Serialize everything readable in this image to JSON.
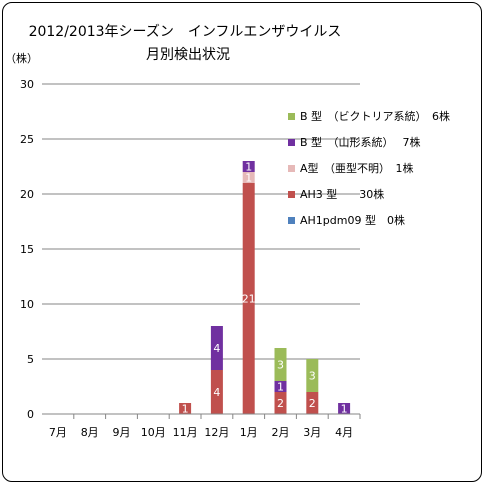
{
  "chart_data": {
    "type": "bar",
    "stacked": true,
    "title": "2012/2013年シーズン インフルエンザウイルス",
    "title_line1": "2012/2013年シーズン　インフルエンザウイルス",
    "title_line2": "月別検出状況",
    "ylabel": "（株）",
    "xlabel": "",
    "ylim": [
      0,
      30
    ],
    "yticks": [
      "0",
      "5",
      "10",
      "15",
      "20",
      "25",
      "30"
    ],
    "grid": true,
    "legend_position": "right",
    "categories": [
      "7月",
      "8月",
      "9月",
      "10月",
      "11月",
      "12月",
      "1月",
      "2月",
      "3月",
      "4月"
    ],
    "series": [
      {
        "name": "AH1pdm09 型",
        "legend": "AH1pdm09 型　0株",
        "color": "#4f81bd",
        "values": [
          0,
          0,
          0,
          0,
          0,
          0,
          0,
          0,
          0,
          0
        ]
      },
      {
        "name": "AH3 型",
        "legend": "AH3 型　　30株",
        "color": "#c0504d",
        "values": [
          0,
          0,
          0,
          0,
          1,
          4,
          21,
          2,
          2,
          0
        ]
      },
      {
        "name": "A型（亜型不明）",
        "legend": "A型　（亜型不明）　1株",
        "color": "#e6b9b8",
        "values": [
          0,
          0,
          0,
          0,
          0,
          0,
          1,
          0,
          0,
          0
        ]
      },
      {
        "name": "B 型（山形系統）",
        "legend": "B 型　（山形系統）　 7株",
        "color": "#7030a0",
        "values": [
          0,
          0,
          0,
          0,
          0,
          4,
          1,
          1,
          0,
          1
        ]
      },
      {
        "name": "B 型（ビクトリア系統）",
        "legend": "B 型　（ビクトリア系統）　6株",
        "color": "#9bbb59",
        "values": [
          0,
          0,
          0,
          0,
          0,
          0,
          0,
          3,
          3,
          0
        ]
      }
    ],
    "legend_order": [
      "B 型（ビクトリア系統）",
      "B 型（山形系統）",
      "A型（亜型不明）",
      "AH3 型",
      "AH1pdm09 型"
    ]
  }
}
